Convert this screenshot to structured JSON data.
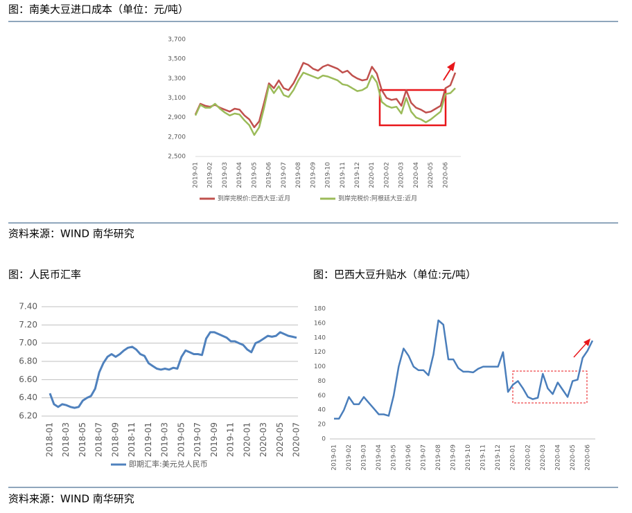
{
  "sources": [
    "资料来源：WIND 南华研究",
    "资料来源：WIND 南华研究"
  ],
  "chart_data": [
    {
      "type": "line",
      "title": "图：南美大豆进口成本（单位：元/吨）",
      "categories": [
        "2019-01",
        null,
        null,
        "2019-02",
        null,
        null,
        "2019-03",
        null,
        null,
        "2019-04",
        null,
        null,
        "2019-05",
        null,
        null,
        "2019-06",
        null,
        null,
        "2019-07",
        null,
        null,
        "2019-08",
        null,
        null,
        "2019-09",
        null,
        null,
        "2019-10",
        null,
        null,
        "2019-11",
        null,
        null,
        "2019-12",
        null,
        null,
        "2020-01",
        null,
        null,
        "2020-02",
        null,
        null,
        "2020-03",
        null,
        null,
        "2020-04",
        null,
        null,
        "2020-05",
        null,
        null,
        "2020-06",
        null,
        null
      ],
      "series": [
        {
          "name": "到岸完税价:巴西大豆:近月",
          "color": "#c0504d",
          "values": [
            2930,
            3040,
            3020,
            3010,
            3030,
            3000,
            2980,
            2960,
            2990,
            2980,
            2920,
            2880,
            2800,
            2860,
            3050,
            3250,
            3200,
            3280,
            3200,
            3180,
            3250,
            3350,
            3460,
            3440,
            3400,
            3380,
            3420,
            3440,
            3420,
            3400,
            3360,
            3380,
            3330,
            3300,
            3280,
            3290,
            3420,
            3350,
            3180,
            3100,
            3080,
            3090,
            3020,
            3180,
            3050,
            3000,
            2980,
            2950,
            2960,
            2990,
            3020,
            3200,
            3230,
            3360
          ]
        },
        {
          "name": "到岸完税价:阿根廷大豆:近月",
          "color": "#9bbb59",
          "values": [
            2920,
            3030,
            3000,
            3000,
            3040,
            2990,
            2950,
            2920,
            2940,
            2930,
            2870,
            2820,
            2720,
            2800,
            3000,
            3230,
            3150,
            3220,
            3130,
            3110,
            3180,
            3280,
            3360,
            3340,
            3320,
            3300,
            3330,
            3320,
            3300,
            3280,
            3240,
            3230,
            3200,
            3170,
            3180,
            3210,
            3330,
            3260,
            3060,
            3020,
            3000,
            3010,
            2940,
            3100,
            2960,
            2900,
            2880,
            2850,
            2880,
            2920,
            2960,
            3140,
            3150,
            3200
          ]
        }
      ],
      "ylim": [
        2500,
        3700
      ],
      "yticks": [
        {
          "value": 2500,
          "label": "2,500"
        },
        {
          "value": 2700,
          "label": "2,700"
        },
        {
          "value": 2900,
          "label": "2,900"
        },
        {
          "value": 3100,
          "label": "3,100"
        },
        {
          "value": 3300,
          "label": "3,300"
        },
        {
          "value": 3500,
          "label": "3,500"
        },
        {
          "value": 3700,
          "label": "3,700"
        }
      ],
      "grid": false,
      "legend": "bottom"
    },
    {
      "type": "line",
      "title": "图：人民币汇率",
      "categories": [
        "2018-01",
        null,
        null,
        null,
        "2018-03",
        null,
        null,
        null,
        "2018-05",
        null,
        null,
        null,
        "2018-07",
        null,
        null,
        null,
        "2018-09",
        null,
        null,
        null,
        "2018-11",
        null,
        null,
        null,
        "2019-01",
        null,
        null,
        null,
        "2019-03",
        null,
        null,
        null,
        "2019-05",
        null,
        null,
        null,
        "2019-07",
        null,
        null,
        null,
        "2019-09",
        null,
        null,
        null,
        "2019-11",
        null,
        null,
        null,
        "2020-01",
        null,
        null,
        null,
        "2020-03",
        null,
        null,
        null,
        "2020-05",
        null,
        null,
        null,
        "2020-07"
      ],
      "series": [
        {
          "name": "即期汇率:美元兑人民币",
          "color": "#4f81bd",
          "values": [
            6.45,
            6.33,
            6.3,
            6.33,
            6.32,
            6.3,
            6.29,
            6.3,
            6.37,
            6.4,
            6.42,
            6.5,
            6.68,
            6.78,
            6.85,
            6.88,
            6.85,
            6.88,
            6.92,
            6.95,
            6.96,
            6.93,
            6.88,
            6.86,
            6.78,
            6.75,
            6.72,
            6.71,
            6.72,
            6.71,
            6.73,
            6.72,
            6.85,
            6.92,
            6.9,
            6.88,
            6.88,
            6.87,
            7.05,
            7.12,
            7.12,
            7.1,
            7.08,
            7.06,
            7.02,
            7.02,
            7.0,
            6.98,
            6.93,
            6.9,
            7.0,
            7.02,
            7.05,
            7.08,
            7.07,
            7.08,
            7.12,
            7.1,
            7.08,
            7.07,
            7.06
          ]
        }
      ],
      "ylim": [
        6.2,
        7.4
      ],
      "yticks": [
        {
          "value": 6.2,
          "label": "6.20"
        },
        {
          "value": 6.4,
          "label": "6.40"
        },
        {
          "value": 6.6,
          "label": "6.60"
        },
        {
          "value": 6.8,
          "label": "6.80"
        },
        {
          "value": 7.0,
          "label": "7.00"
        },
        {
          "value": 7.2,
          "label": "7.20"
        },
        {
          "value": 7.4,
          "label": "7.40"
        }
      ],
      "grid": true,
      "legend": "bottom"
    },
    {
      "type": "line",
      "title": "图：巴西大豆升贴水（单位:元/吨）",
      "categories": [
        "2019-01",
        null,
        null,
        "2019-02",
        null,
        null,
        "2019-03",
        null,
        null,
        "2019-04",
        null,
        null,
        "2019-05",
        null,
        null,
        "2019-06",
        null,
        null,
        "2019-07",
        null,
        null,
        "2019-08",
        null,
        null,
        "2019-09",
        null,
        null,
        "2019-10",
        null,
        null,
        "2019-11",
        null,
        null,
        "2019-12",
        null,
        null,
        "2020-01",
        null,
        null,
        "2020-02",
        null,
        null,
        "2020-03",
        null,
        null,
        "2020-04",
        null,
        null,
        "2020-05",
        null,
        null,
        "2020-06",
        null
      ],
      "series": [
        {
          "color": "#4a7ebb",
          "values": [
            28,
            28,
            40,
            58,
            48,
            48,
            58,
            50,
            42,
            34,
            34,
            32,
            60,
            100,
            125,
            115,
            100,
            95,
            95,
            88,
            117,
            164,
            158,
            110,
            110,
            98,
            93,
            93,
            92,
            97,
            100,
            100,
            100,
            100,
            120,
            65,
            75,
            80,
            70,
            58,
            55,
            57,
            90,
            70,
            62,
            78,
            68,
            58,
            80,
            82,
            112,
            122,
            136
          ]
        }
      ],
      "ylim": [
        0,
        180
      ],
      "yticks": [
        0,
        20,
        40,
        60,
        80,
        100,
        120,
        140,
        160,
        180
      ],
      "grid": false
    }
  ]
}
